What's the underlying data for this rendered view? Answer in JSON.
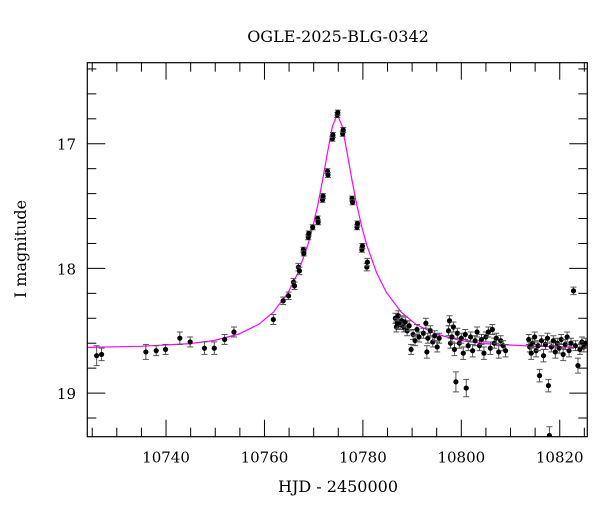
{
  "chart_data": {
    "type": "scatter",
    "title": "OGLE-2025-BLG-0342",
    "xlabel": "HJD - 2450000",
    "ylabel": "I magnitude",
    "xlim": [
      10724.0,
      10825.6
    ],
    "ylim": [
      19.35,
      16.35
    ],
    "y_inverted": true,
    "grid": false,
    "x_ticks": [
      10740,
      10760,
      10780,
      10800,
      10820
    ],
    "x_tick_labels": [
      "10740",
      "10760",
      "10780",
      "10800",
      "10820"
    ],
    "y_ticks": [
      17,
      18,
      19
    ],
    "y_tick_labels": [
      "17",
      "18",
      "19"
    ],
    "x_minor_step": 5,
    "y_minor_step": 0.2,
    "colors": {
      "points": "#000000",
      "errorbars": "#555555",
      "model": "#ff00ff"
    },
    "series": [
      {
        "type": "scatter-errorbars",
        "columns": [
          "hjd",
          "mag",
          "err"
        ],
        "points": [
          [
            10725.9,
            18.7,
            0.08
          ],
          [
            10726.9,
            18.69,
            0.05
          ],
          [
            10735.9,
            18.67,
            0.06
          ],
          [
            10738.0,
            18.66,
            0.04
          ],
          [
            10739.9,
            18.65,
            0.04
          ],
          [
            10742.8,
            18.56,
            0.05
          ],
          [
            10744.9,
            18.59,
            0.04
          ],
          [
            10747.8,
            18.64,
            0.05
          ],
          [
            10749.8,
            18.64,
            0.05
          ],
          [
            10751.9,
            18.57,
            0.04
          ],
          [
            10753.8,
            18.51,
            0.04
          ],
          [
            10761.8,
            18.41,
            0.04
          ],
          [
            10763.8,
            18.26,
            0.03
          ],
          [
            10764.9,
            18.22,
            0.03
          ],
          [
            10765.9,
            18.11,
            0.03
          ],
          [
            10766.1,
            18.14,
            0.03
          ],
          [
            10766.9,
            17.99,
            0.03
          ],
          [
            10767.1,
            18.02,
            0.03
          ],
          [
            10767.9,
            17.85,
            0.02
          ],
          [
            10768.0,
            17.88,
            0.02
          ],
          [
            10768.9,
            17.75,
            0.02
          ],
          [
            10769.0,
            17.72,
            0.02
          ],
          [
            10769.8,
            17.67,
            0.02
          ],
          [
            10770.8,
            17.6,
            0.02
          ],
          [
            10770.9,
            17.63,
            0.02
          ],
          [
            10771.8,
            17.45,
            0.02
          ],
          [
            10771.9,
            17.42,
            0.02
          ],
          [
            10772.8,
            17.22,
            0.02
          ],
          [
            10772.9,
            17.25,
            0.02
          ],
          [
            10773.8,
            16.96,
            0.02
          ],
          [
            10773.9,
            16.93,
            0.02
          ],
          [
            10774.8,
            16.77,
            0.02
          ],
          [
            10774.9,
            16.75,
            0.02
          ],
          [
            10775.9,
            16.92,
            0.02
          ],
          [
            10776.0,
            16.89,
            0.02
          ],
          [
            10777.8,
            17.44,
            0.02
          ],
          [
            10777.9,
            17.47,
            0.02
          ],
          [
            10778.8,
            17.67,
            0.02
          ],
          [
            10778.9,
            17.64,
            0.02
          ],
          [
            10779.8,
            17.85,
            0.02
          ],
          [
            10779.9,
            17.82,
            0.02
          ],
          [
            10780.8,
            17.99,
            0.03
          ],
          [
            10780.9,
            17.95,
            0.03
          ],
          [
            10786.6,
            18.4,
            0.04
          ],
          [
            10786.8,
            18.47,
            0.04
          ],
          [
            10787.0,
            18.44,
            0.04
          ],
          [
            10787.2,
            18.38,
            0.04
          ],
          [
            10787.6,
            18.45,
            0.04
          ],
          [
            10787.9,
            18.42,
            0.04
          ],
          [
            10788.3,
            18.47,
            0.04
          ],
          [
            10788.6,
            18.43,
            0.04
          ],
          [
            10789.0,
            18.5,
            0.04
          ],
          [
            10789.4,
            18.46,
            0.04
          ],
          [
            10789.8,
            18.65,
            0.04
          ],
          [
            10790.2,
            18.53,
            0.04
          ],
          [
            10790.6,
            18.58,
            0.04
          ],
          [
            10791.0,
            18.49,
            0.04
          ],
          [
            10791.4,
            18.55,
            0.04
          ],
          [
            10792.3,
            18.52,
            0.04
          ],
          [
            10792.8,
            18.44,
            0.04
          ],
          [
            10793.0,
            18.67,
            0.05
          ],
          [
            10793.2,
            18.56,
            0.04
          ],
          [
            10793.7,
            18.5,
            0.04
          ],
          [
            10794.2,
            18.59,
            0.04
          ],
          [
            10794.6,
            18.54,
            0.04
          ],
          [
            10795.1,
            18.63,
            0.04
          ],
          [
            10795.5,
            18.56,
            0.04
          ],
          [
            10797.4,
            18.5,
            0.04
          ],
          [
            10797.6,
            18.42,
            0.04
          ],
          [
            10797.8,
            18.6,
            0.04
          ],
          [
            10798.1,
            18.55,
            0.04
          ],
          [
            10798.4,
            18.47,
            0.04
          ],
          [
            10798.6,
            18.65,
            0.05
          ],
          [
            10798.9,
            18.91,
            0.08
          ],
          [
            10799.2,
            18.52,
            0.04
          ],
          [
            10799.6,
            18.6,
            0.04
          ],
          [
            10800.0,
            18.56,
            0.04
          ],
          [
            10800.4,
            18.68,
            0.05
          ],
          [
            10800.8,
            18.53,
            0.04
          ],
          [
            10801.0,
            18.96,
            0.07
          ],
          [
            10801.4,
            18.62,
            0.04
          ],
          [
            10801.9,
            18.55,
            0.04
          ],
          [
            10802.3,
            18.66,
            0.05
          ],
          [
            10802.8,
            18.58,
            0.04
          ],
          [
            10803.2,
            18.51,
            0.04
          ],
          [
            10803.7,
            18.62,
            0.04
          ],
          [
            10804.1,
            18.57,
            0.04
          ],
          [
            10804.6,
            18.68,
            0.05
          ],
          [
            10805.0,
            18.55,
            0.04
          ],
          [
            10805.5,
            18.51,
            0.04
          ],
          [
            10805.9,
            18.64,
            0.05
          ],
          [
            10806.3,
            18.49,
            0.04
          ],
          [
            10806.7,
            18.6,
            0.04
          ],
          [
            10807.1,
            18.56,
            0.04
          ],
          [
            10807.6,
            18.67,
            0.05
          ],
          [
            10808.0,
            18.58,
            0.04
          ],
          [
            10808.5,
            18.62,
            0.04
          ],
          [
            10809.0,
            18.66,
            0.05
          ],
          [
            10813.7,
            18.57,
            0.04
          ],
          [
            10813.9,
            18.63,
            0.04
          ],
          [
            10814.2,
            18.68,
            0.05
          ],
          [
            10814.5,
            18.6,
            0.04
          ],
          [
            10814.9,
            18.55,
            0.04
          ],
          [
            10815.2,
            18.66,
            0.05
          ],
          [
            10815.6,
            18.62,
            0.04
          ],
          [
            10815.9,
            18.86,
            0.05
          ],
          [
            10816.3,
            18.58,
            0.04
          ],
          [
            10816.7,
            18.7,
            0.05
          ],
          [
            10817.1,
            18.61,
            0.04
          ],
          [
            10817.5,
            18.56,
            0.04
          ],
          [
            10817.7,
            18.94,
            0.05
          ],
          [
            10817.9,
            19.34,
            0.07
          ],
          [
            10818.3,
            18.63,
            0.04
          ],
          [
            10818.7,
            18.58,
            0.04
          ],
          [
            10819.1,
            18.67,
            0.05
          ],
          [
            10819.5,
            18.6,
            0.04
          ],
          [
            10819.9,
            18.64,
            0.04
          ],
          [
            10820.3,
            18.57,
            0.04
          ],
          [
            10820.7,
            18.69,
            0.05
          ],
          [
            10821.1,
            18.61,
            0.04
          ],
          [
            10821.5,
            18.55,
            0.04
          ],
          [
            10821.9,
            18.66,
            0.05
          ],
          [
            10822.3,
            18.6,
            0.04
          ],
          [
            10822.8,
            18.18,
            0.03
          ],
          [
            10823.2,
            18.62,
            0.04
          ],
          [
            10823.7,
            18.78,
            0.06
          ],
          [
            10824.1,
            18.65,
            0.04
          ],
          [
            10824.5,
            18.59,
            0.04
          ],
          [
            10824.9,
            18.63,
            0.04
          ],
          [
            10825.3,
            18.6,
            0.04
          ]
        ]
      },
      {
        "type": "line",
        "columns": [
          "hjd",
          "mag"
        ],
        "points": [
          [
            10724.0,
            18.634
          ],
          [
            10734.8,
            18.625
          ],
          [
            10744.8,
            18.603
          ],
          [
            10749.8,
            18.578
          ],
          [
            10754.8,
            18.526
          ],
          [
            10758.8,
            18.449
          ],
          [
            10761.8,
            18.351
          ],
          [
            10764.8,
            18.194
          ],
          [
            10766.8,
            18.037
          ],
          [
            10768.8,
            17.814
          ],
          [
            10769.8,
            17.671
          ],
          [
            10770.8,
            17.499
          ],
          [
            10771.8,
            17.297
          ],
          [
            10772.8,
            17.071
          ],
          [
            10773.8,
            16.86
          ],
          [
            10774.8,
            16.765
          ],
          [
            10775.8,
            16.86
          ],
          [
            10776.8,
            17.071
          ],
          [
            10777.8,
            17.297
          ],
          [
            10778.8,
            17.499
          ],
          [
            10779.8,
            17.671
          ],
          [
            10780.8,
            17.814
          ],
          [
            10782.8,
            18.037
          ],
          [
            10784.8,
            18.194
          ],
          [
            10787.8,
            18.351
          ],
          [
            10790.8,
            18.449
          ],
          [
            10794.8,
            18.526
          ],
          [
            10799.8,
            18.578
          ],
          [
            10804.8,
            18.603
          ],
          [
            10814.8,
            18.625
          ],
          [
            10825.6,
            18.634
          ]
        ]
      }
    ]
  }
}
